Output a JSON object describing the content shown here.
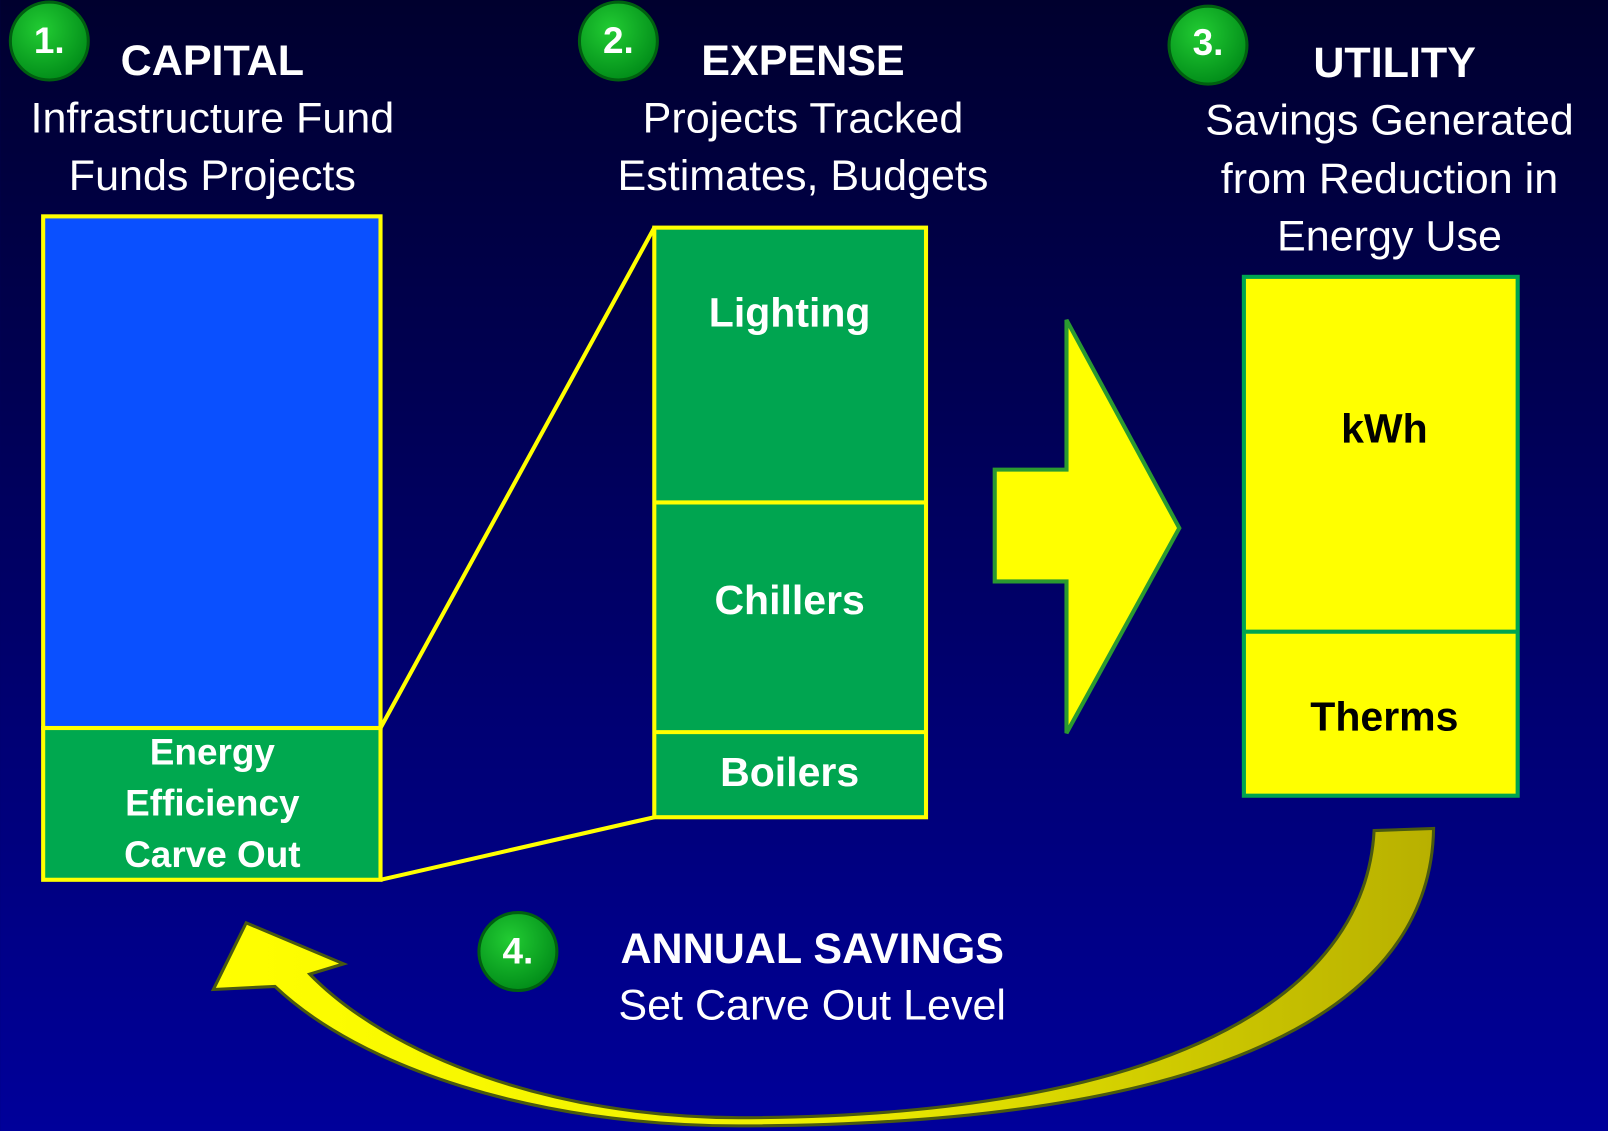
{
  "steps": [
    {
      "number": "1.",
      "title": "CAPITAL",
      "subtitle": [
        "Infrastructure Fund",
        "Funds Projects"
      ]
    },
    {
      "number": "2.",
      "title": "EXPENSE",
      "subtitle": [
        "Projects Tracked",
        "Estimates, Budgets"
      ]
    },
    {
      "number": "3.",
      "title": "UTILITY",
      "subtitle": [
        "Savings Generated",
        "from Reduction in",
        "Energy Use"
      ]
    },
    {
      "number": "4.",
      "title": "ANNUAL SAVINGS",
      "subtitle": [
        "Set Carve Out Level"
      ]
    }
  ],
  "capital_block": {
    "carve_out": [
      "Energy",
      "Efficiency",
      "Carve Out"
    ]
  },
  "expense_block": {
    "segments": [
      "Lighting",
      "Chillers",
      "Boilers"
    ]
  },
  "utility_block": {
    "segments": [
      "kWh",
      "Therms"
    ]
  }
}
